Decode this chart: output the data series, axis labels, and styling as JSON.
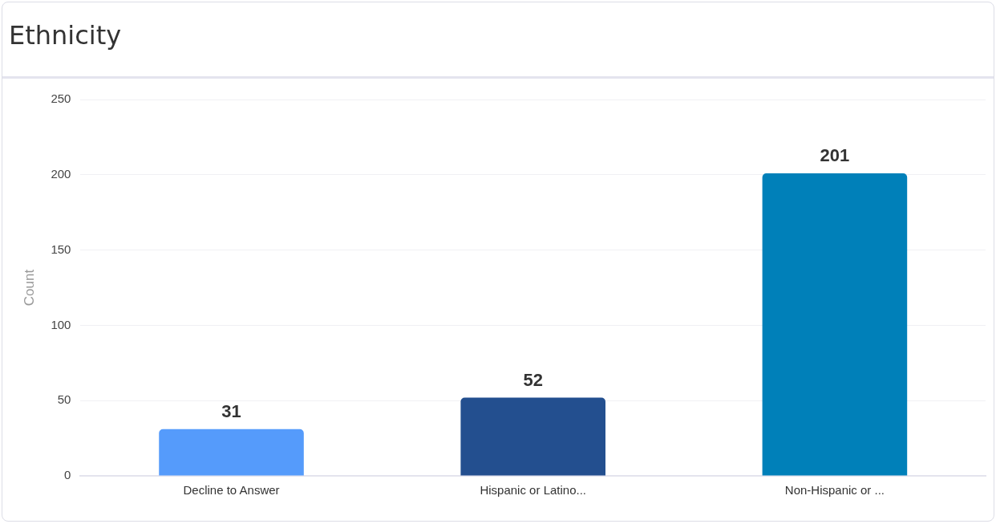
{
  "chart_data": {
    "type": "bar",
    "title": "Ethnicity",
    "ylabel": "Count",
    "categories": [
      "Decline to Answer",
      "Hispanic or Latino...",
      "Non-Hispanic or ..."
    ],
    "values": [
      31,
      52,
      201
    ],
    "colors": [
      "#559bfb",
      "#234f8f",
      "#0080b9"
    ],
    "ylim": [
      0,
      250
    ],
    "yticks": [
      0,
      50,
      100,
      150,
      200,
      250
    ],
    "grid": "y",
    "data_labels": true,
    "legend": false
  }
}
